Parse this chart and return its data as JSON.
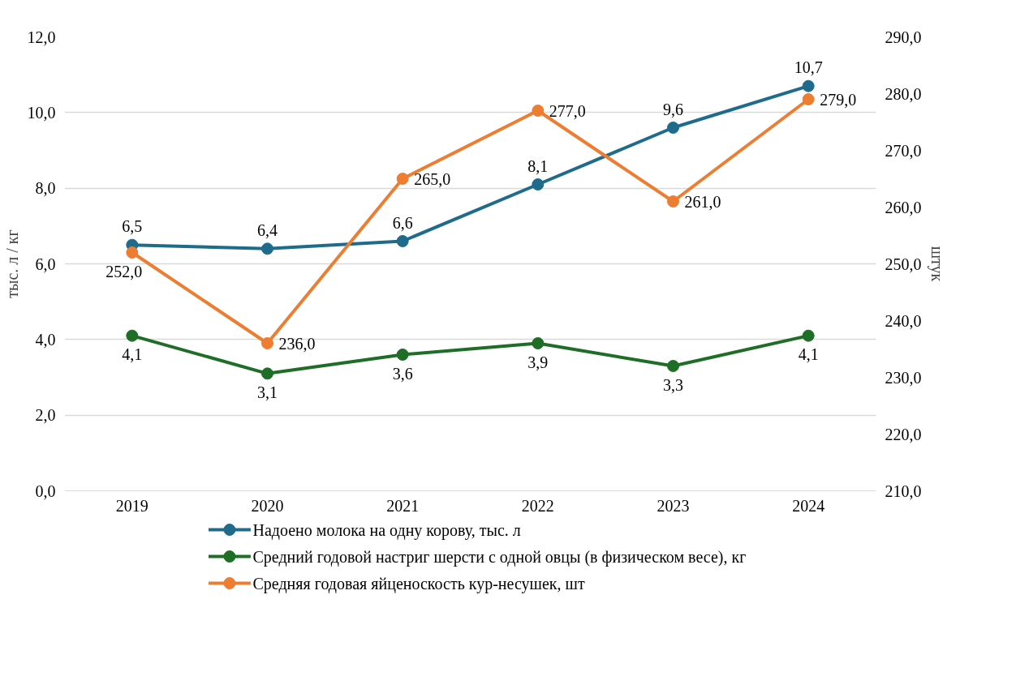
{
  "chart_data": {
    "type": "line",
    "categories": [
      "2019",
      "2020",
      "2021",
      "2022",
      "2023",
      "2024"
    ],
    "ylabel": "тыс. л / кг",
    "y2label": "штук",
    "ylim": [
      0,
      12
    ],
    "yticks": [
      {
        "value": 0,
        "label": "0,0"
      },
      {
        "value": 2,
        "label": "2,0"
      },
      {
        "value": 4,
        "label": "4,0"
      },
      {
        "value": 6,
        "label": "6,0"
      },
      {
        "value": 8,
        "label": "8,0"
      },
      {
        "value": 10,
        "label": "10,0"
      },
      {
        "value": 12,
        "label": "12,0"
      }
    ],
    "y2lim": [
      210,
      290
    ],
    "y2ticks": [
      {
        "value": 210,
        "label": "210,0"
      },
      {
        "value": 220,
        "label": "220,0"
      },
      {
        "value": 230,
        "label": "230,0"
      },
      {
        "value": 240,
        "label": "240,0"
      },
      {
        "value": 250,
        "label": "250,0"
      },
      {
        "value": 260,
        "label": "260,0"
      },
      {
        "value": 270,
        "label": "270,0"
      },
      {
        "value": 280,
        "label": "280,0"
      },
      {
        "value": 290,
        "label": "290,0"
      }
    ],
    "grid": "y",
    "legend": "bottom",
    "marker": "circle",
    "line_style": "solid",
    "series": [
      {
        "name": "Надоено молока на одну корову, тыс. л",
        "color": "#1f6b8c",
        "values": [
          6.5,
          6.4,
          6.6,
          8.1,
          9.6,
          10.7
        ],
        "value_labels": [
          "6,5",
          "6,4",
          "6,6",
          "8,1",
          "9,6",
          "10,7"
        ]
      },
      {
        "name": "Средний годовой настриг шерсти с одной овцы (в физическом весе), кг",
        "color": "#1e6e27",
        "values": [
          4.1,
          3.1,
          3.6,
          3.9,
          3.3,
          4.1
        ],
        "value_labels": [
          "4,1",
          "3,1",
          "3,6",
          "3,9",
          "3,3",
          "4,1"
        ]
      },
      {
        "name": "Средняя годовая яйценоскость кур-несушек, шт",
        "color": "#ed7d31",
        "axis": "y2",
        "values": [
          252,
          236,
          265,
          277,
          261,
          279
        ],
        "value_labels": [
          "252,0",
          "236,0",
          "265,0",
          "277,0",
          "261,0",
          "279,0"
        ]
      }
    ]
  }
}
